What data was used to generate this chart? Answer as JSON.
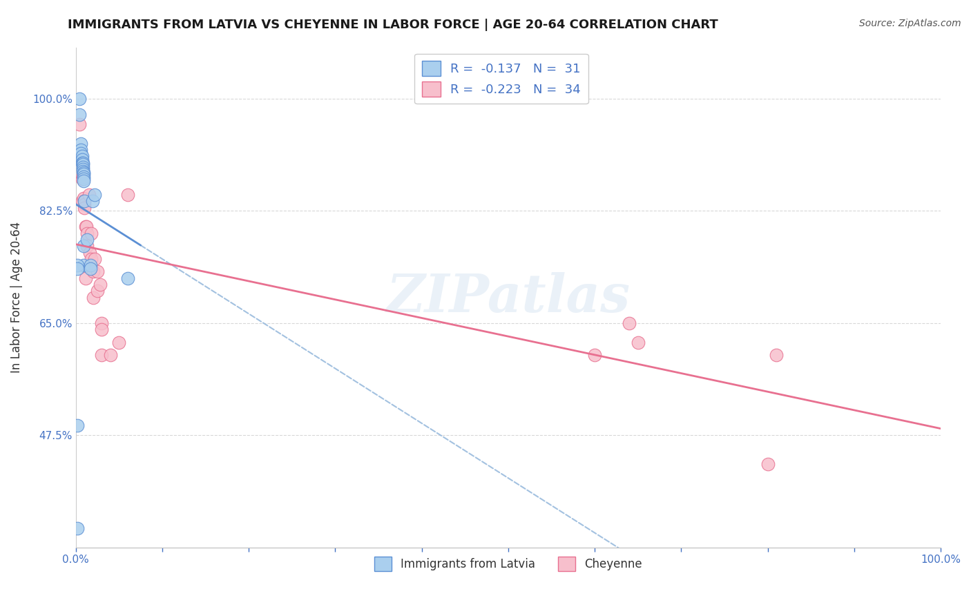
{
  "title": "IMMIGRANTS FROM LATVIA VS CHEYENNE IN LABOR FORCE | AGE 20-64 CORRELATION CHART",
  "source": "Source: ZipAtlas.com",
  "ylabel": "In Labor Force | Age 20-64",
  "xlim": [
    0.0,
    1.0
  ],
  "ylim": [
    0.3,
    1.08
  ],
  "xticks": [
    0.0,
    0.1,
    0.2,
    0.3,
    0.4,
    0.5,
    0.6,
    0.7,
    0.8,
    0.9,
    1.0
  ],
  "xticklabels": [
    "0.0%",
    "",
    "",
    "",
    "",
    "",
    "",
    "",
    "",
    "",
    "100.0%"
  ],
  "ytick_positions": [
    0.475,
    0.65,
    0.825,
    1.0
  ],
  "yticklabels": [
    "47.5%",
    "65.0%",
    "82.5%",
    "100.0%"
  ],
  "series1_label": "Immigrants from Latvia",
  "series1_R": -0.137,
  "series1_N": 31,
  "series1_color": "#aacfee",
  "series1_line_color": "#5b8fd4",
  "series2_label": "Cheyenne",
  "series2_R": -0.223,
  "series2_N": 34,
  "series2_color": "#f7bfcc",
  "series2_line_color": "#e87090",
  "watermark": "ZIPatlas",
  "series1_x": [
    0.002,
    0.004,
    0.004,
    0.006,
    0.006,
    0.006,
    0.007,
    0.007,
    0.007,
    0.008,
    0.008,
    0.008,
    0.008,
    0.008,
    0.009,
    0.009,
    0.009,
    0.009,
    0.009,
    0.009,
    0.009,
    0.01,
    0.013,
    0.017,
    0.017,
    0.019,
    0.022,
    0.06,
    0.002,
    0.002,
    0.002
  ],
  "series1_y": [
    0.33,
    1.0,
    0.975,
    0.93,
    0.92,
    0.915,
    0.91,
    0.905,
    0.9,
    0.9,
    0.897,
    0.893,
    0.89,
    0.887,
    0.885,
    0.882,
    0.878,
    0.875,
    0.872,
    0.77,
    0.74,
    0.84,
    0.78,
    0.74,
    0.735,
    0.84,
    0.85,
    0.72,
    0.74,
    0.735,
    0.49
  ],
  "series2_x": [
    0.004,
    0.007,
    0.007,
    0.008,
    0.009,
    0.01,
    0.01,
    0.01,
    0.011,
    0.011,
    0.012,
    0.013,
    0.013,
    0.015,
    0.016,
    0.018,
    0.018,
    0.02,
    0.02,
    0.022,
    0.025,
    0.025,
    0.028,
    0.03,
    0.03,
    0.03,
    0.04,
    0.05,
    0.06,
    0.6,
    0.64,
    0.65,
    0.8,
    0.81
  ],
  "series2_y": [
    0.96,
    0.875,
    0.84,
    0.88,
    0.845,
    0.84,
    0.835,
    0.83,
    0.8,
    0.72,
    0.8,
    0.79,
    0.77,
    0.85,
    0.76,
    0.79,
    0.75,
    0.73,
    0.69,
    0.75,
    0.73,
    0.7,
    0.71,
    0.65,
    0.64,
    0.6,
    0.6,
    0.62,
    0.85,
    0.6,
    0.65,
    0.62,
    0.43,
    0.6
  ],
  "grid_color": "#d8d8d8",
  "tick_color": "#4472c4",
  "bg_color": "#ffffff",
  "title_fontsize": 13,
  "axis_fontsize": 12,
  "blue_regline_xmax": 0.075,
  "dashed_line_color": "#99bbdd"
}
